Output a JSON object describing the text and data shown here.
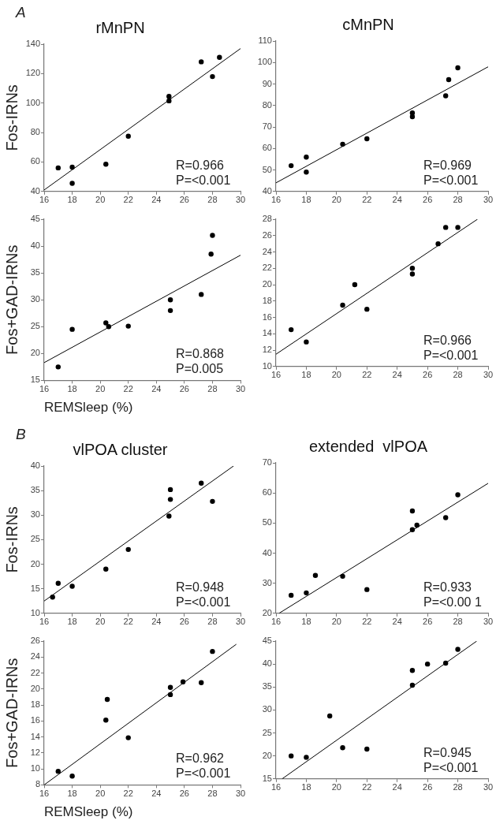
{
  "chart_data": [
    {
      "type": "scatter",
      "title": "rMnPN",
      "ylabel": "Fos-IRNs",
      "marker": "circle",
      "annotations": [
        "A",
        "R=0.966",
        "P=<0.001"
      ],
      "xlim": [
        16,
        30
      ],
      "xticks": [
        16,
        18,
        20,
        22,
        24,
        26,
        28,
        30
      ],
      "ylim": [
        40,
        140
      ],
      "yticks": [
        40,
        60,
        80,
        100,
        120,
        140
      ],
      "series": [
        {
          "color": "#000000",
          "x": [
            17,
            18,
            18,
            20.4,
            22,
            24.9,
            24.9,
            27.2,
            28,
            28.5
          ],
          "values": [
            56,
            56.5,
            45.5,
            58.5,
            77.5,
            104.5,
            101.5,
            128,
            118,
            131
          ]
        },
        {
          "type": "line",
          "marker": "none",
          "color": "#000000",
          "x": [
            16,
            30
          ],
          "values": [
            41,
            137
          ]
        }
      ]
    },
    {
      "type": "scatter",
      "title": "cMnPN",
      "marker": "circle",
      "annotations": [
        "R=0.969",
        "P=<0.001"
      ],
      "xlim": [
        16,
        30
      ],
      "xticks": [
        16,
        18,
        20,
        22,
        24,
        26,
        28,
        30
      ],
      "ylim": [
        40,
        110
      ],
      "yticks": [
        40,
        50,
        60,
        70,
        80,
        90,
        100,
        110
      ],
      "series": [
        {
          "color": "#000000",
          "x": [
            17,
            18,
            18,
            20.4,
            22,
            25,
            25,
            27.2,
            27.4,
            28
          ],
          "values": [
            52,
            56,
            49,
            62,
            64.5,
            76.5,
            74.8,
            84.5,
            92,
            97.5
          ]
        },
        {
          "type": "line",
          "marker": "none",
          "color": "#000000",
          "x": [
            16,
            30
          ],
          "values": [
            44,
            98
          ]
        }
      ]
    },
    {
      "type": "scatter",
      "ylabel": "Fos+GAD-IRNs",
      "xlabel": "REMSleep (%)",
      "marker": "circle",
      "annotations": [
        "R=0.868",
        "P=0.005"
      ],
      "xlim": [
        16,
        30
      ],
      "xticks": [
        16,
        18,
        20,
        22,
        24,
        26,
        28,
        30
      ],
      "ylim": [
        15,
        45
      ],
      "yticks": [
        15,
        20,
        25,
        30,
        35,
        40,
        45
      ],
      "series": [
        {
          "color": "#000000",
          "x": [
            17,
            18,
            20.4,
            20.6,
            22,
            25,
            25,
            27.2,
            27.9,
            28
          ],
          "values": [
            17.5,
            24.5,
            25.7,
            25,
            25.1,
            30,
            28,
            31,
            38.5,
            42
          ]
        },
        {
          "type": "line",
          "marker": "none",
          "color": "#000000",
          "x": [
            16,
            30
          ],
          "values": [
            18.3,
            38.3
          ]
        }
      ]
    },
    {
      "type": "scatter",
      "marker": "circle",
      "annotations": [
        "R=0.966",
        "P=<0.001"
      ],
      "xlim": [
        16,
        30
      ],
      "xticks": [
        16,
        18,
        20,
        22,
        24,
        26,
        28,
        30
      ],
      "ylim": [
        10,
        28
      ],
      "yticks": [
        10,
        12,
        14,
        16,
        18,
        20,
        22,
        24,
        26,
        28
      ],
      "series": [
        {
          "color": "#000000",
          "x": [
            17,
            18,
            20.4,
            21.2,
            22,
            25,
            25,
            26.7,
            27.2,
            28
          ],
          "values": [
            14.5,
            13,
            17.5,
            20,
            17,
            22,
            21.3,
            25,
            27,
            27
          ]
        },
        {
          "type": "line",
          "marker": "none",
          "color": "#000000",
          "x": [
            16,
            29.3
          ],
          "values": [
            11.5,
            28
          ]
        }
      ]
    },
    {
      "type": "scatter",
      "title": "vlPOA cluster",
      "ylabel": "Fos-IRNs",
      "marker": "circle",
      "annotations": [
        "B",
        "R=0.948",
        "P=<0.001"
      ],
      "xlim": [
        16,
        30
      ],
      "xticks": [
        16,
        18,
        20,
        22,
        24,
        26,
        28,
        30
      ],
      "ylim": [
        10,
        40
      ],
      "yticks": [
        10,
        15,
        20,
        25,
        30,
        35,
        40
      ],
      "series": [
        {
          "color": "#000000",
          "x": [
            16.6,
            17,
            18,
            20.4,
            22,
            25,
            25,
            24.9,
            27.2,
            28
          ],
          "values": [
            13.3,
            16.1,
            15.5,
            19,
            23,
            35.2,
            33.2,
            29.8,
            36.5,
            32.8
          ]
        },
        {
          "type": "line",
          "marker": "none",
          "color": "#000000",
          "x": [
            16,
            29.5
          ],
          "values": [
            12.5,
            40
          ]
        }
      ]
    },
    {
      "type": "scatter",
      "title": "extended  vlPOA",
      "marker": "circle",
      "annotations": [
        "R=0.933",
        "P=<0.00 1"
      ],
      "xlim": [
        16,
        30
      ],
      "xticks": [
        16,
        18,
        20,
        22,
        24,
        26,
        28,
        30
      ],
      "ylim": [
        20,
        70
      ],
      "yticks": [
        20,
        30,
        40,
        50,
        60,
        70
      ],
      "series": [
        {
          "color": "#000000",
          "x": [
            17,
            18,
            18.6,
            20.4,
            22,
            25,
            25,
            25.3,
            27.2,
            28
          ],
          "values": [
            26,
            26.8,
            32.6,
            32.3,
            27.9,
            54,
            47.8,
            49.3,
            51.8,
            59.4
          ]
        },
        {
          "type": "line",
          "marker": "none",
          "color": "#000000",
          "x": [
            16.2,
            30
          ],
          "values": [
            20,
            63.2
          ]
        }
      ]
    },
    {
      "type": "scatter",
      "ylabel": "Fos+GAD-IRNs",
      "xlabel": "REMSleep (%)",
      "marker": "circle",
      "annotations": [
        "R=0.962",
        "P=<0.001"
      ],
      "xlim": [
        16,
        30
      ],
      "xticks": [
        16,
        18,
        20,
        22,
        24,
        26,
        28,
        30
      ],
      "ylim": [
        8,
        26
      ],
      "yticks": [
        8,
        10,
        12,
        14,
        16,
        18,
        20,
        22,
        24,
        26
      ],
      "series": [
        {
          "color": "#000000",
          "x": [
            17,
            18,
            20.4,
            20.5,
            22,
            25,
            25,
            25.9,
            27.2,
            28
          ],
          "values": [
            9.7,
            9.1,
            16.1,
            18.7,
            13.9,
            20.2,
            19.3,
            20.9,
            20.8,
            24.7
          ]
        },
        {
          "type": "line",
          "marker": "none",
          "color": "#000000",
          "x": [
            16,
            29.7
          ],
          "values": [
            8,
            25.6
          ]
        }
      ]
    },
    {
      "type": "scatter",
      "marker": "circle",
      "annotations": [
        "R=0.945",
        "P=<0.001"
      ],
      "xlim": [
        16,
        30
      ],
      "xticks": [
        16,
        18,
        20,
        22,
        24,
        26,
        28,
        30
      ],
      "ylim": [
        15,
        45
      ],
      "yticks": [
        15,
        20,
        25,
        30,
        35,
        40,
        45
      ],
      "series": [
        {
          "color": "#000000",
          "x": [
            17,
            18,
            19.55,
            20.4,
            22,
            25,
            25,
            26,
            27.2,
            28
          ],
          "values": [
            20,
            19.7,
            28.7,
            21.8,
            21.5,
            38.6,
            35.4,
            40,
            40.2,
            43.2
          ]
        },
        {
          "type": "line",
          "marker": "none",
          "color": "#000000",
          "x": [
            16.4,
            29.25
          ],
          "values": [
            15,
            45
          ]
        }
      ]
    }
  ]
}
